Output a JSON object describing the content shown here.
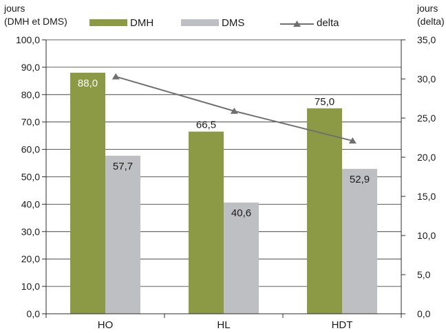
{
  "chart_data": {
    "type": "bar",
    "categories": [
      "HO",
      "HL",
      "HDT"
    ],
    "series": [
      {
        "name": "DMH",
        "type": "bar",
        "axis": "left",
        "color": "#8c9a46",
        "values": [
          88.0,
          66.5,
          75.0
        ],
        "labels": [
          "88,0",
          "66,5",
          "75,0"
        ]
      },
      {
        "name": "DMS",
        "type": "bar",
        "axis": "left",
        "color": "#bebfc3",
        "values": [
          57.7,
          40.6,
          52.9
        ],
        "labels": [
          "57,7",
          "40,6",
          "52,9"
        ]
      },
      {
        "name": "delta",
        "type": "line",
        "axis": "right",
        "color": "#6f6f6f",
        "values": [
          30.3,
          25.9,
          22.1
        ]
      }
    ],
    "left_axis": {
      "title_line1": "jours",
      "title_line2": "(DMH et DMS)",
      "range": [
        0,
        100
      ],
      "ticks": [
        "0,0",
        "10,0",
        "20,0",
        "30,0",
        "40,0",
        "50,0",
        "60,0",
        "70,0",
        "80,0",
        "90,0",
        "100,0"
      ]
    },
    "right_axis": {
      "title_line1": "jours",
      "title_line2": "(delta)",
      "range": [
        0,
        35
      ],
      "ticks": [
        "0,0",
        "5,0",
        "10,0",
        "15,0",
        "20,0",
        "25,0",
        "30,0",
        "35,0"
      ]
    },
    "grid": true,
    "legend_position": "top"
  }
}
